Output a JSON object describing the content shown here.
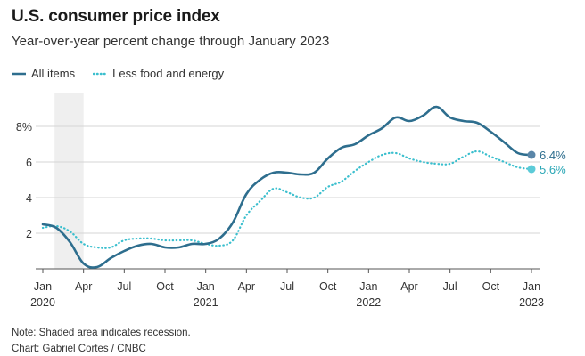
{
  "chart_data": {
    "type": "line",
    "title": "U.S. consumer price index",
    "subtitle": "Year-over-year percent change through January 2023",
    "x": [
      "2020-01",
      "2020-02",
      "2020-03",
      "2020-04",
      "2020-05",
      "2020-06",
      "2020-07",
      "2020-08",
      "2020-09",
      "2020-10",
      "2020-11",
      "2020-12",
      "2021-01",
      "2021-02",
      "2021-03",
      "2021-04",
      "2021-05",
      "2021-06",
      "2021-07",
      "2021-08",
      "2021-09",
      "2021-10",
      "2021-11",
      "2021-12",
      "2022-01",
      "2022-02",
      "2022-03",
      "2022-04",
      "2022-05",
      "2022-06",
      "2022-07",
      "2022-08",
      "2022-09",
      "2022-10",
      "2022-11",
      "2022-12",
      "2023-01"
    ],
    "series": [
      {
        "name": "All items",
        "color": "#2e6e8e",
        "style": "solid",
        "values": [
          2.5,
          2.3,
          1.5,
          0.3,
          0.1,
          0.6,
          1.0,
          1.3,
          1.4,
          1.2,
          1.2,
          1.4,
          1.4,
          1.7,
          2.6,
          4.2,
          5.0,
          5.4,
          5.4,
          5.3,
          5.4,
          6.2,
          6.8,
          7.0,
          7.5,
          7.9,
          8.5,
          8.3,
          8.6,
          9.1,
          8.5,
          8.3,
          8.2,
          7.7,
          7.1,
          6.5,
          6.4
        ]
      },
      {
        "name": "Less food and energy",
        "color": "#3bbfce",
        "style": "dotted",
        "values": [
          2.3,
          2.4,
          2.1,
          1.4,
          1.2,
          1.2,
          1.6,
          1.7,
          1.7,
          1.6,
          1.6,
          1.6,
          1.4,
          1.3,
          1.6,
          3.0,
          3.8,
          4.5,
          4.3,
          4.0,
          4.0,
          4.6,
          4.9,
          5.5,
          6.0,
          6.4,
          6.5,
          6.2,
          6.0,
          5.9,
          5.9,
          6.3,
          6.6,
          6.3,
          6.0,
          5.7,
          5.6
        ]
      }
    ],
    "end_labels": [
      "6.4%",
      "5.6%"
    ],
    "x_tick_labels": [
      [
        "Jan",
        "2020"
      ],
      [
        "Apr",
        ""
      ],
      [
        "Jul",
        ""
      ],
      [
        "Oct",
        ""
      ],
      [
        "Jan",
        "2021"
      ],
      [
        "Apr",
        ""
      ],
      [
        "Jul",
        ""
      ],
      [
        "Oct",
        ""
      ],
      [
        "Jan",
        "2022"
      ],
      [
        "Apr",
        ""
      ],
      [
        "Jul",
        ""
      ],
      [
        "Oct",
        ""
      ],
      [
        "Jan",
        "2023"
      ]
    ],
    "x_tick_months": [
      0,
      3,
      6,
      9,
      12,
      15,
      18,
      21,
      24,
      27,
      30,
      33,
      36
    ],
    "y_ticks": [
      2,
      4,
      6,
      8
    ],
    "y_tick_labels": [
      "2",
      "4",
      "6",
      "8%"
    ],
    "ylim": [
      0,
      9.2
    ],
    "grid": true,
    "recession_shade": [
      "2020-02",
      "2020-04"
    ],
    "legend_position": "top-left"
  },
  "notes": {
    "shaded": "Note: Shaded area indicates recession.",
    "credit": "Chart: Gabriel Cortes / CNBC"
  }
}
